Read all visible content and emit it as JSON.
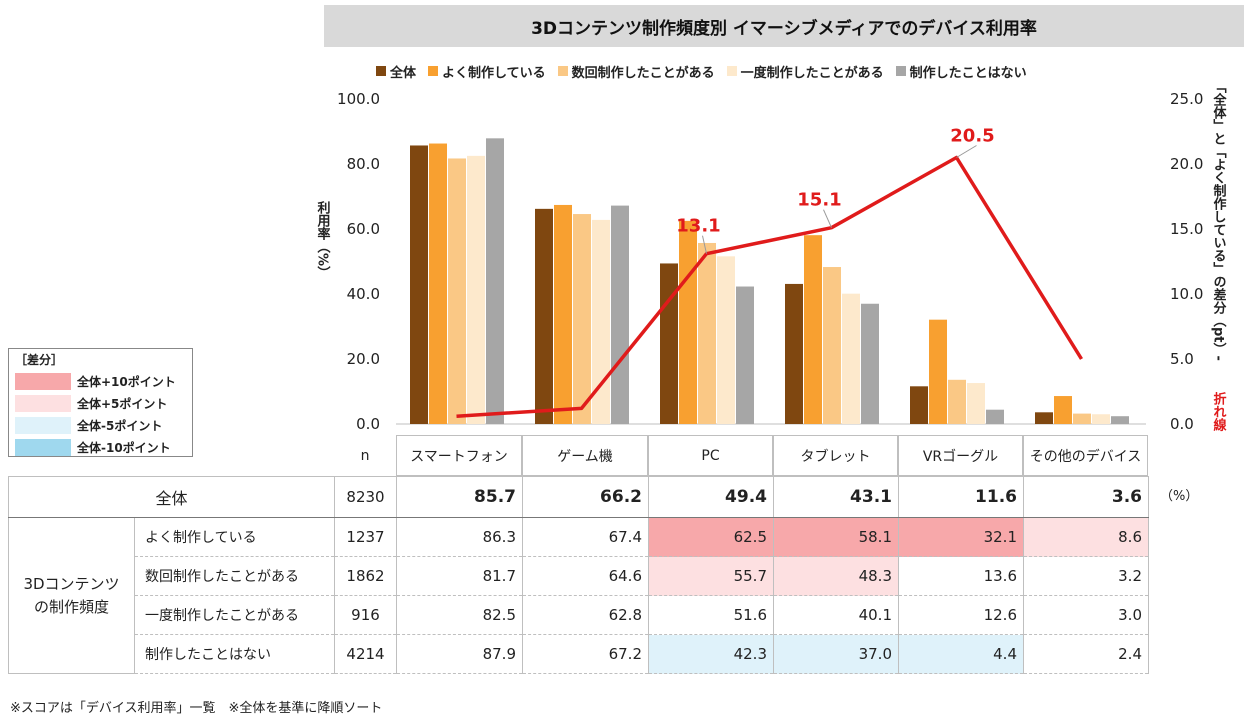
{
  "chart_data": {
    "type": "bar",
    "title": "3Dコンテンツ制作頻度別 イマーシブメディアでのデバイス利用率",
    "categories": [
      "スマートフォン",
      "ゲーム機",
      "PC",
      "タブレット",
      "VRゴーグル",
      "その他のデバイス"
    ],
    "series": [
      {
        "name": "全体",
        "values": [
          85.7,
          66.2,
          49.4,
          43.1,
          11.6,
          3.6
        ]
      },
      {
        "name": "よく制作している",
        "values": [
          86.3,
          67.4,
          62.5,
          58.1,
          32.1,
          8.6
        ]
      },
      {
        "name": "数回制作したことがある",
        "values": [
          81.7,
          64.6,
          55.7,
          48.3,
          13.6,
          3.2
        ]
      },
      {
        "name": "一度制作したことがある",
        "values": [
          82.5,
          62.8,
          51.6,
          40.1,
          12.6,
          3.0
        ]
      },
      {
        "name": "制作したことはない",
        "values": [
          87.9,
          67.2,
          42.3,
          37.0,
          4.4,
          2.4
        ]
      }
    ],
    "line": {
      "values": [
        0.6,
        1.2,
        13.1,
        15.1,
        20.5,
        5.0
      ],
      "labels": [
        "",
        "",
        "13.1",
        "15.1",
        "20.5",
        ""
      ]
    },
    "ylim": [
      0,
      100
    ],
    "y2lim": [
      0,
      25
    ],
    "yticks": [
      "0.0",
      "20.0",
      "40.0",
      "60.0",
      "80.0",
      "100.0"
    ],
    "y2ticks": [
      "0.0",
      "5.0",
      "10.0",
      "15.0",
      "20.0",
      "25.0"
    ],
    "ylabel": "利用率（%）",
    "y2label_a": "「全体」と「よく制作している」の差分（pt）-",
    "y2label_b": "折れ線",
    "colors": {
      "series": [
        "#7f4710",
        "#f8a030",
        "#fac885",
        "#fde9cc",
        "#a6a6a6"
      ],
      "line": "#e01b1b"
    }
  },
  "diff_legend": {
    "header": "［差分］",
    "items": [
      {
        "label": "全体+10ポイント",
        "color": "#f7a8aa"
      },
      {
        "label": "全体+5ポイント",
        "color": "#fde0e1"
      },
      {
        "label": "全体-5ポイント",
        "color": "#dff2fa"
      },
      {
        "label": "全体-10ポイント",
        "color": "#9fd8ee"
      }
    ]
  },
  "table": {
    "n_header": "n",
    "total_label": "全体",
    "total_n": "8230",
    "total_values": [
      "85.7",
      "66.2",
      "49.4",
      "43.1",
      "11.6",
      "3.6"
    ],
    "unit": "（%）",
    "group_label_1": "3Dコンテンツ",
    "group_label_2": "の制作頻度",
    "rows": [
      {
        "label": "よく制作している",
        "n": "1237",
        "values": [
          "86.3",
          "67.4",
          "62.5",
          "58.1",
          "32.1",
          "8.6"
        ],
        "highlight": [
          "",
          "",
          "#f7a8aa",
          "#f7a8aa",
          "#f7a8aa",
          "#fde0e1"
        ]
      },
      {
        "label": "数回制作したことがある",
        "n": "1862",
        "values": [
          "81.7",
          "64.6",
          "55.7",
          "48.3",
          "13.6",
          "3.2"
        ],
        "highlight": [
          "",
          "",
          "#fde0e1",
          "#fde0e1",
          "",
          ""
        ]
      },
      {
        "label": "一度制作したことがある",
        "n": "916",
        "values": [
          "82.5",
          "62.8",
          "51.6",
          "40.1",
          "12.6",
          "3.0"
        ],
        "highlight": [
          "",
          "",
          "",
          "",
          "",
          ""
        ]
      },
      {
        "label": "制作したことはない",
        "n": "4214",
        "values": [
          "87.9",
          "67.2",
          "42.3",
          "37.0",
          "4.4",
          "2.4"
        ],
        "highlight": [
          "",
          "",
          "#dff2fa",
          "#dff2fa",
          "#dff2fa",
          ""
        ]
      }
    ]
  },
  "footnote": "※スコアは「デバイス利用率」一覧　※全体を基準に降順ソート"
}
